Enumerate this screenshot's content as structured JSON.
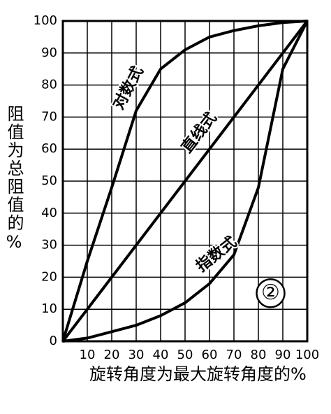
{
  "chart_data": {
    "type": "line",
    "y_label": "阻值为总阻值的%",
    "x_label": "旋转角度为最大旋转角度的%",
    "annotation": "②",
    "x": [
      0,
      10,
      20,
      30,
      40,
      50,
      60,
      70,
      80,
      90,
      100
    ],
    "series": [
      {
        "name": "对数式",
        "color": "#000000",
        "values": [
          0,
          25,
          48,
          72,
          85,
          91,
          95,
          97,
          98.5,
          99.5,
          100
        ]
      },
      {
        "name": "直线式",
        "color": "#000000",
        "values": [
          0,
          10,
          20,
          30,
          40,
          50,
          60,
          70,
          80,
          90,
          100
        ]
      },
      {
        "name": "指数式",
        "color": "#000000",
        "values": [
          0,
          1,
          3,
          5,
          8,
          12,
          18,
          27,
          48,
          85,
          100
        ]
      }
    ],
    "xlim": [
      0,
      100
    ],
    "ylim": [
      0,
      100
    ],
    "xticks": [
      10,
      20,
      30,
      40,
      50,
      60,
      70,
      80,
      90,
      100
    ],
    "yticks": [
      0,
      10,
      20,
      30,
      40,
      50,
      60,
      70,
      80,
      90,
      100
    ],
    "grid": true
  }
}
